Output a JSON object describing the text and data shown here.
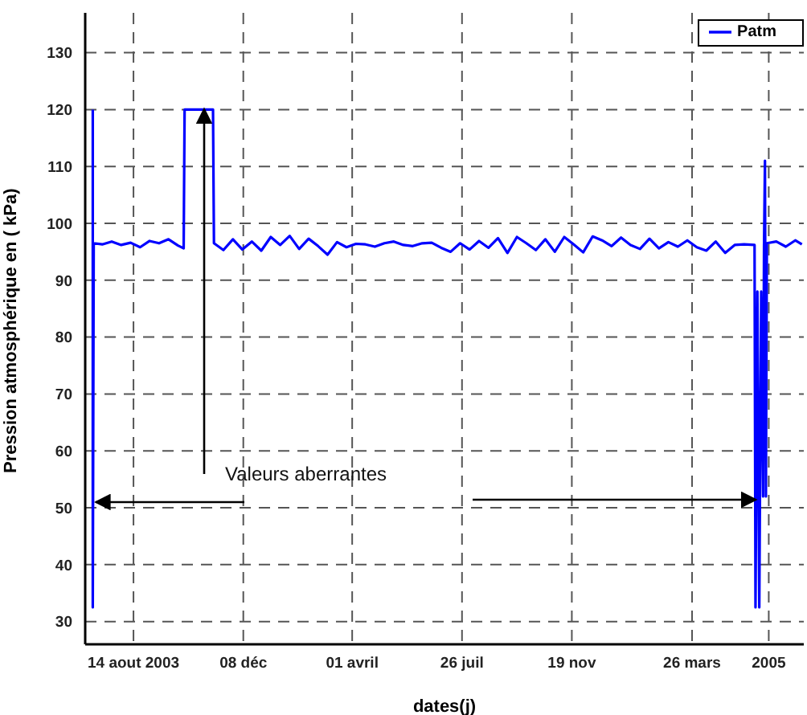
{
  "chart_data": {
    "type": "line",
    "xlabel": "dates(j)",
    "ylabel": "Pression atmosphérique en ( kPa)",
    "annotations": [
      {
        "text": "Valeurs aberrantes",
        "x": "2003-07-02",
        "y": 51
      }
    ],
    "xlim": [
      "2003-06-24",
      "2005-07-22"
    ],
    "ylim": [
      26,
      137
    ],
    "xticks": [
      {
        "value": "2003-08-14",
        "label": "14 aout 2003"
      },
      {
        "value": "2003-12-08",
        "label": "08 déc"
      },
      {
        "value": "2004-04-01",
        "label": "01 avril"
      },
      {
        "value": "2004-07-26",
        "label": "26 juil"
      },
      {
        "value": "2004-11-19",
        "label": "19 nov"
      },
      {
        "value": "2005-03-26",
        "label": "26 mars"
      },
      {
        "value": "2005-06-15",
        "label": "2005"
      }
    ],
    "yticks": [
      30,
      40,
      50,
      60,
      70,
      80,
      90,
      100,
      110,
      120,
      130
    ],
    "grid": true,
    "legend": "top right",
    "line_style": "solid",
    "marker": "none",
    "series": [
      {
        "name": "Patm",
        "color": "#0000ff",
        "x": [
          "2003-07-02",
          "2003-07-02",
          "2003-07-03",
          "2003-07-12",
          "2003-07-22",
          "2003-08-01",
          "2003-08-11",
          "2003-08-21",
          "2003-08-31",
          "2003-09-10",
          "2003-09-20",
          "2003-09-30",
          "2003-10-06",
          "2003-10-07",
          "2003-11-06",
          "2003-11-07",
          "2003-11-17",
          "2003-11-27",
          "2003-12-07",
          "2003-12-17",
          "2003-12-27",
          "2004-01-06",
          "2004-01-16",
          "2004-01-26",
          "2004-02-05",
          "2004-02-15",
          "2004-02-25",
          "2004-03-06",
          "2004-03-16",
          "2004-03-26",
          "2004-04-05",
          "2004-04-15",
          "2004-04-25",
          "2004-05-05",
          "2004-05-15",
          "2004-05-25",
          "2004-06-04",
          "2004-06-14",
          "2004-06-24",
          "2004-07-04",
          "2004-07-14",
          "2004-07-24",
          "2004-08-03",
          "2004-08-13",
          "2004-08-23",
          "2004-09-02",
          "2004-09-12",
          "2004-09-22",
          "2004-10-02",
          "2004-10-12",
          "2004-10-22",
          "2004-11-01",
          "2004-11-11",
          "2004-11-21",
          "2004-12-01",
          "2004-12-11",
          "2004-12-21",
          "2004-12-31",
          "2005-01-10",
          "2005-01-20",
          "2005-01-30",
          "2005-02-09",
          "2005-02-19",
          "2005-03-01",
          "2005-03-11",
          "2005-03-21",
          "2005-03-31",
          "2005-04-10",
          "2005-04-20",
          "2005-04-30",
          "2005-05-10",
          "2005-05-20",
          "2005-05-31",
          "2005-06-01",
          "2005-06-03",
          "2005-06-05",
          "2005-06-07",
          "2005-06-09",
          "2005-06-10",
          "2005-06-11",
          "2005-06-12",
          "2005-06-13",
          "2005-06-23",
          "2005-07-03",
          "2005-07-13",
          "2005-07-20"
        ],
        "values": [
          120,
          32.5,
          96.5,
          96.3,
          96.8,
          96.2,
          96.6,
          95.8,
          96.9,
          96.5,
          97.2,
          96.1,
          95.6,
          120,
          120,
          96.5,
          95.3,
          97.2,
          95.4,
          96.8,
          95.2,
          97.6,
          96.2,
          97.8,
          95.5,
          97.3,
          96,
          94.5,
          96.7,
          95.8,
          96.4,
          96.3,
          95.9,
          96.5,
          96.8,
          96.2,
          96,
          96.5,
          96.6,
          95.7,
          95,
          96.5,
          95.4,
          96.9,
          95.7,
          97.4,
          94.8,
          97.6,
          96.5,
          95.3,
          97.2,
          95,
          97.6,
          96.3,
          94.9,
          97.7,
          97,
          96,
          97.5,
          96.2,
          95.5,
          97.3,
          95.6,
          96.7,
          95.9,
          97,
          95.8,
          95.2,
          96.8,
          94.8,
          96.2,
          96.3,
          96.2,
          32.5,
          88,
          32.5,
          88,
          52,
          96,
          111,
          52,
          96.5,
          96.8,
          95.9,
          97,
          96.3
        ]
      }
    ]
  }
}
